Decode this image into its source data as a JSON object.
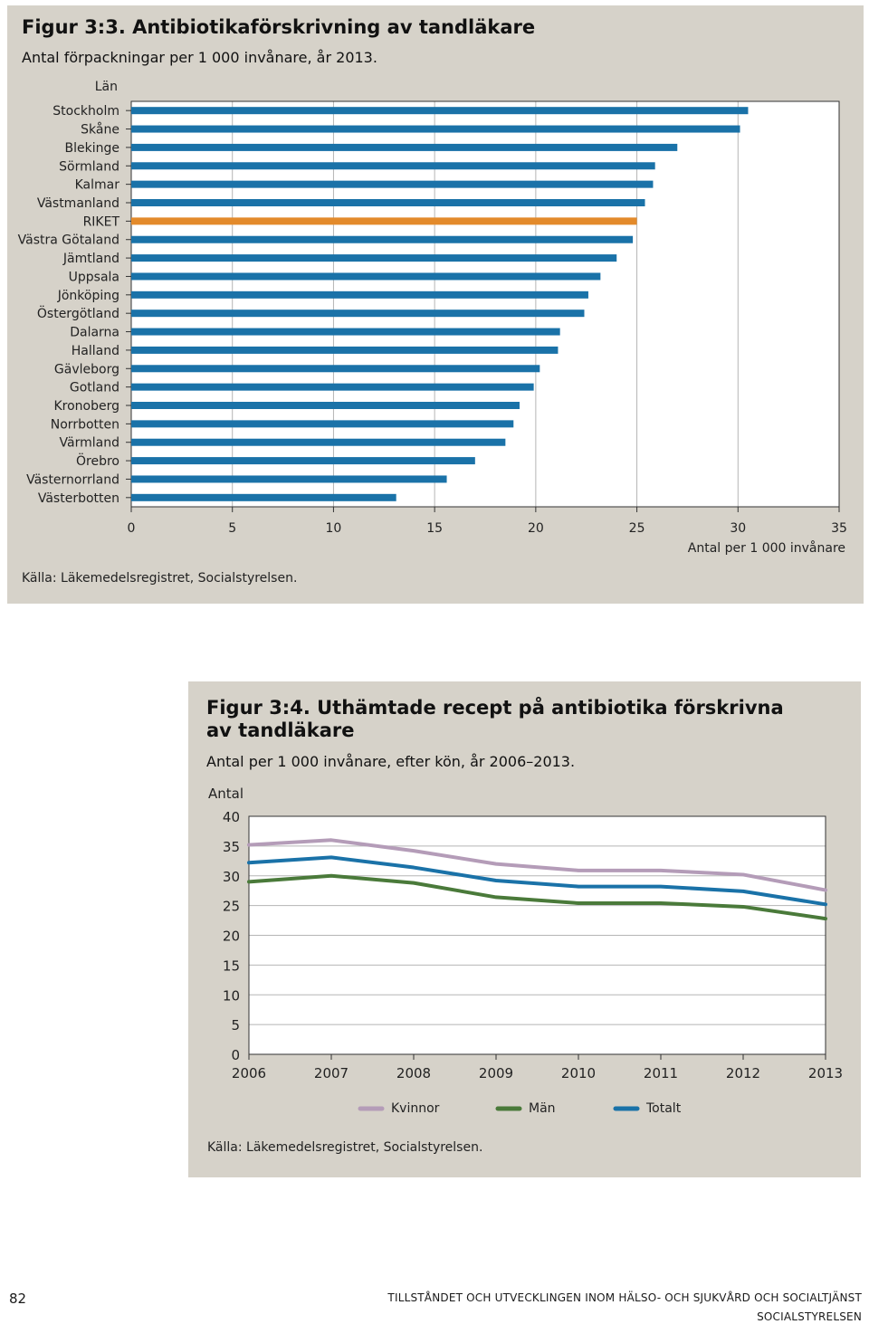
{
  "figure1": {
    "title": "Figur 3:3. Antibiotikaförskrivning av tandläkare",
    "subtitle": "Antal förpackningar per 1 000 invånare, år 2013.",
    "source": "Källa: Läkemedelsregistret, Socialstyrelsen.",
    "chart_data": {
      "type": "bar",
      "orientation": "horizontal",
      "category_axis_label": "Län",
      "categories": [
        "Stockholm",
        "Skåne",
        "Blekinge",
        "Sörmland",
        "Kalmar",
        "Västmanland",
        "RIKET",
        "Västra Götaland",
        "Jämtland",
        "Uppsala",
        "Jönköping",
        "Östergötland",
        "Dalarna",
        "Halland",
        "Gävleborg",
        "Gotland",
        "Kronoberg",
        "Norrbotten",
        "Värmland",
        "Örebro",
        "Västernorrland",
        "Västerbotten"
      ],
      "values": [
        30.5,
        30.1,
        27.0,
        25.9,
        25.8,
        25.4,
        25.0,
        24.8,
        24.0,
        23.2,
        22.6,
        22.4,
        21.2,
        21.1,
        20.2,
        19.9,
        19.2,
        18.9,
        18.5,
        17.0,
        15.6,
        13.1
      ],
      "highlight": "RIKET",
      "bar_color": "#1a72a8",
      "highlight_color": "#e38a2b",
      "xlim": [
        0,
        35
      ],
      "xticks": [
        "0",
        "5",
        "10",
        "15",
        "20",
        "25",
        "30",
        "35"
      ],
      "xlabel": "Antal per 1 000 invånare",
      "grid": true
    }
  },
  "figure2": {
    "title_line1": "Figur 3:4. Uthämtade recept på antibiotika förskrivna",
    "title_line2": "av tandläkare",
    "subtitle": "Antal per 1 000 invånare, efter kön, år 2006–2013.",
    "source": "Källa: Läkemedelsregistret, Socialstyrelsen.",
    "chart_data": {
      "type": "line",
      "ylabel": "Antal",
      "x": [
        "2006",
        "2007",
        "2008",
        "2009",
        "2010",
        "2011",
        "2012",
        "2013"
      ],
      "ylim": [
        0,
        40
      ],
      "yticks": [
        "0",
        "5",
        "10",
        "15",
        "20",
        "25",
        "30",
        "35",
        "40"
      ],
      "grid": true,
      "legend_position": "bottom",
      "series": [
        {
          "name": "Kvinnor",
          "color": "#b49cb8",
          "values": [
            35.2,
            36.0,
            34.2,
            32.0,
            30.9,
            30.9,
            30.2,
            27.6
          ]
        },
        {
          "name": "Män",
          "color": "#4a7a3a",
          "values": [
            29.0,
            30.0,
            28.8,
            26.4,
            25.4,
            25.4,
            24.8,
            22.8
          ]
        },
        {
          "name": "Totalt",
          "color": "#1a72a8",
          "values": [
            32.2,
            33.1,
            31.4,
            29.2,
            28.2,
            28.2,
            27.4,
            25.2
          ]
        }
      ]
    }
  },
  "footer": {
    "page_number": "82",
    "line1": "TILLSTÅNDET OCH UTVECKLINGEN INOM HÄLSO- OCH SJUKVÅRD OCH SOCIALTJÄNST",
    "line2": "SOCIALSTYRELSEN"
  }
}
